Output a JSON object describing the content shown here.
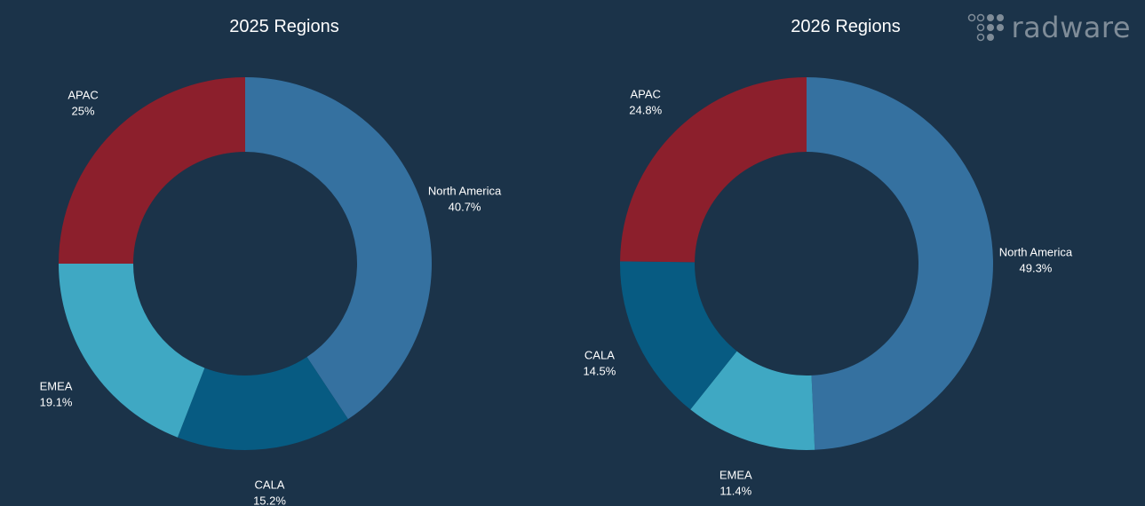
{
  "brand": {
    "name": "radware"
  },
  "colors": {
    "background": "#1b3349",
    "north_america": "#3571a0",
    "cala": "#075b82",
    "emea": "#3fa8c3",
    "apac": "#8c1f2c"
  },
  "chart_data": [
    {
      "type": "donut",
      "title": "2025 Regions",
      "series": [
        {
          "name": "North America",
          "value": 40.7,
          "label": "40.7%"
        },
        {
          "name": "CALA",
          "value": 15.2,
          "label": "15.2%"
        },
        {
          "name": "EMEA",
          "value": 19.1,
          "label": "19.1%"
        },
        {
          "name": "APAC",
          "value": 25,
          "label": "25%"
        }
      ]
    },
    {
      "type": "donut",
      "title": "2026 Regions",
      "series": [
        {
          "name": "North America",
          "value": 49.3,
          "label": "49.3%"
        },
        {
          "name": "EMEA",
          "value": 11.4,
          "label": "11.4%"
        },
        {
          "name": "CALA",
          "value": 14.5,
          "label": "14.5%"
        },
        {
          "name": "APAC",
          "value": 24.8,
          "label": "24.8%"
        }
      ]
    }
  ]
}
